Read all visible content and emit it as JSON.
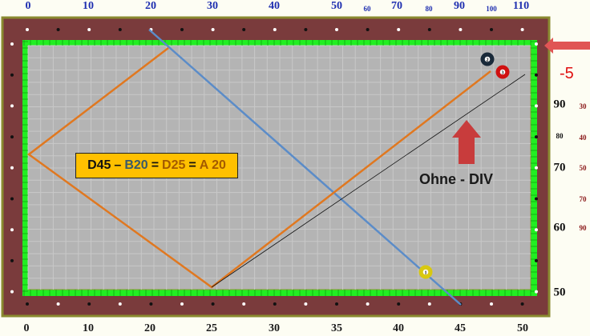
{
  "top_scale": [
    "0",
    "10",
    "20",
    "30",
    "40",
    "50",
    "60",
    "70",
    "80",
    "90",
    "100",
    "110"
  ],
  "bottom_scale": [
    "0",
    "10",
    "20",
    "25",
    "30",
    "35",
    "40",
    "45",
    "50"
  ],
  "right_scale": {
    "main": [
      "90",
      "80",
      "70",
      "60",
      "50"
    ],
    "secondary": [
      "30",
      "40",
      "50",
      "70",
      "90"
    ]
  },
  "correction": "-5",
  "formula": {
    "d": "D45",
    "dash": "–",
    "b": "B20",
    "eq1": "=",
    "d2": "D25",
    "eq2": "=",
    "a": "A 20"
  },
  "note": "Ohne - DIV",
  "balls": [
    "1",
    "2",
    "3"
  ],
  "colors": {
    "frame": "#7a3b3c",
    "rail": "#22ee22",
    "cloth": "#b4b4b4",
    "blue_line": "#5b8cc8",
    "orange_line": "#e07820",
    "formula_bg": "#ffc000",
    "arrow": "#c83c3c"
  }
}
